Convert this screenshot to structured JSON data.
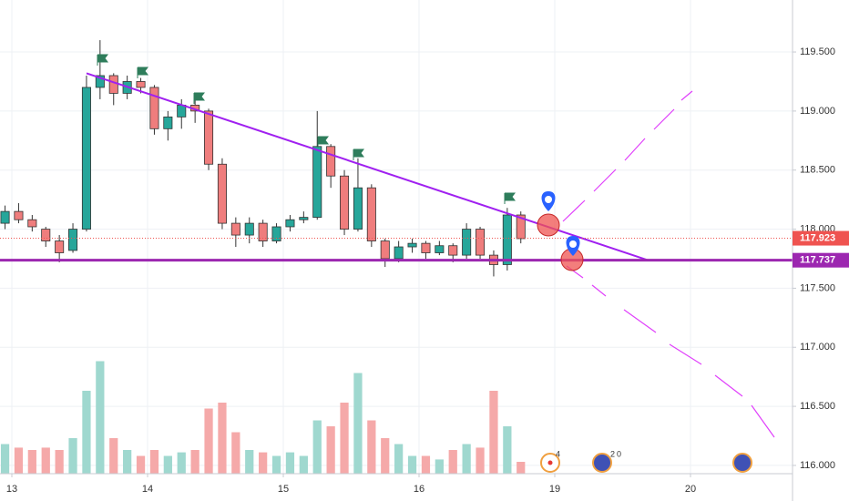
{
  "chart_data": {
    "type": "candlestick",
    "x": [
      -0.05,
      0.05,
      0.15,
      0.25,
      0.35,
      0.45,
      0.55,
      0.65,
      0.75,
      0.85,
      0.95,
      1.05,
      1.15,
      1.25,
      1.35,
      1.45,
      1.55,
      1.65,
      1.75,
      1.85,
      1.95,
      2.05,
      2.15,
      2.25,
      2.35,
      2.45,
      2.55,
      2.65,
      2.75,
      2.85,
      2.95,
      3.05,
      3.15,
      3.25,
      3.35,
      3.45,
      3.55,
      3.65,
      3.75
    ],
    "open": [
      118.05,
      118.15,
      118.08,
      118.0,
      117.9,
      117.82,
      118.0,
      119.2,
      119.3,
      119.15,
      119.25,
      119.2,
      118.85,
      118.95,
      119.05,
      119.0,
      118.55,
      118.05,
      117.95,
      118.05,
      117.9,
      118.02,
      118.08,
      118.1,
      118.7,
      118.45,
      118.0,
      118.35,
      117.9,
      117.75,
      117.85,
      117.88,
      117.8,
      117.86,
      117.78,
      118.0,
      117.78,
      117.7,
      118.12
    ],
    "high": [
      118.2,
      118.22,
      118.12,
      118.02,
      117.95,
      118.05,
      119.3,
      119.6,
      119.32,
      119.3,
      119.28,
      119.22,
      119.0,
      119.1,
      119.1,
      119.02,
      118.6,
      118.1,
      118.1,
      118.08,
      118.05,
      118.12,
      118.15,
      119.0,
      118.72,
      118.5,
      118.6,
      118.38,
      117.92,
      117.9,
      117.92,
      117.9,
      117.9,
      117.88,
      118.05,
      118.02,
      117.82,
      118.18,
      118.15
    ],
    "low": [
      118.0,
      118.05,
      117.98,
      117.85,
      117.72,
      117.8,
      117.98,
      119.1,
      119.05,
      119.1,
      119.15,
      118.8,
      118.75,
      118.85,
      118.9,
      118.5,
      118.0,
      117.85,
      117.88,
      117.85,
      117.88,
      117.98,
      118.05,
      118.08,
      118.35,
      117.95,
      117.98,
      117.85,
      117.68,
      117.72,
      117.8,
      117.75,
      117.78,
      117.72,
      117.75,
      117.75,
      117.6,
      117.65,
      117.88
    ],
    "close": [
      118.15,
      118.08,
      118.02,
      117.9,
      117.8,
      118.0,
      119.2,
      119.3,
      119.15,
      119.25,
      119.2,
      118.85,
      118.95,
      119.05,
      119.0,
      118.55,
      118.05,
      117.95,
      118.05,
      117.9,
      118.02,
      118.08,
      118.1,
      118.7,
      118.45,
      118.0,
      118.35,
      117.9,
      117.75,
      117.85,
      117.88,
      117.8,
      117.86,
      117.78,
      118.0,
      117.78,
      117.7,
      118.12,
      117.92
    ],
    "volume": [
      25,
      22,
      20,
      22,
      20,
      30,
      70,
      95,
      30,
      20,
      15,
      20,
      15,
      18,
      20,
      55,
      60,
      35,
      20,
      18,
      15,
      18,
      15,
      45,
      40,
      60,
      85,
      45,
      30,
      25,
      15,
      15,
      12,
      20,
      25,
      22,
      70,
      40,
      10
    ],
    "volume_lim": [
      0,
      100
    ],
    "up_color": "#26a69a",
    "down_color": "#ef7d7d",
    "up_volume_color": "#9fd8cf",
    "down_volume_color": "#f5a9a9",
    "xlim": [
      -0.0872,
      5.7517
    ],
    "ylim": [
      115.93,
      119.94
    ],
    "xticks": [
      {
        "value": 0,
        "label": "13"
      },
      {
        "value": 1,
        "label": "14"
      },
      {
        "value": 2,
        "label": "15"
      },
      {
        "value": 3,
        "label": "16"
      },
      {
        "value": 4,
        "label": "19"
      },
      {
        "value": 5,
        "label": "20"
      }
    ],
    "yticks": [
      {
        "value": 116.0,
        "label": "116.000"
      },
      {
        "value": 116.5,
        "label": "116.500"
      },
      {
        "value": 117.0,
        "label": "117.000"
      },
      {
        "value": 117.5,
        "label": "117.500"
      },
      {
        "value": 118.0,
        "label": "118.000"
      },
      {
        "value": 118.5,
        "label": "118.500"
      },
      {
        "value": 119.0,
        "label": "119.000"
      },
      {
        "value": 119.5,
        "label": "119.500"
      }
    ],
    "grid": true,
    "trendline": {
      "x": [
        0.55,
        4.68
      ],
      "y": [
        119.32,
        117.74
      ],
      "color": "#a020f0"
    },
    "price_lines": [
      {
        "value": 117.923,
        "label": "117.923",
        "color": "#ef5350",
        "style": "dotted"
      },
      {
        "value": 117.737,
        "label": "117.737",
        "color": "#9c27b0",
        "style": "solid"
      }
    ],
    "event_labels": [
      "4",
      "2",
      "0"
    ]
  }
}
